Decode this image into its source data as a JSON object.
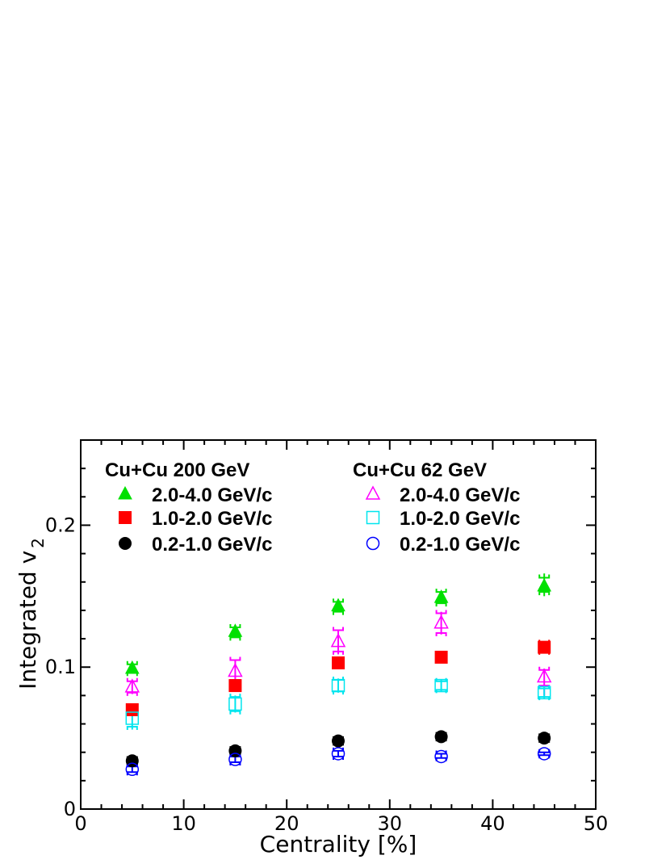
{
  "chart_data": {
    "type": "scatter",
    "xlabel": "Centrality [%]",
    "ylabel": "Integrated v",
    "ylabel_subscript": "2",
    "xlim": [
      0,
      50
    ],
    "ylim": [
      0,
      0.26
    ],
    "x_ticks": [
      {
        "value": 0,
        "label": "0"
      },
      {
        "value": 10,
        "label": "10"
      },
      {
        "value": 20,
        "label": "20"
      },
      {
        "value": 30,
        "label": "30"
      },
      {
        "value": 40,
        "label": "40"
      },
      {
        "value": 50,
        "label": "50"
      }
    ],
    "y_ticks": [
      {
        "value": 0,
        "label": "0"
      },
      {
        "value": 0.1,
        "label": "0.1"
      },
      {
        "value": 0.2,
        "label": "0.2"
      }
    ],
    "grid": false,
    "legend_groups": [
      {
        "title": "Cu+Cu 200 GeV",
        "placement": "top-left"
      },
      {
        "title": "Cu+Cu 62 GeV",
        "placement": "top-right"
      }
    ],
    "series": [
      {
        "name": "2.0-4.0 GeV/c",
        "group": 0,
        "marker": "triangle",
        "filled": true,
        "color": "#00e000",
        "x": [
          5,
          15,
          25,
          35,
          45
        ],
        "y": [
          0.099,
          0.125,
          0.143,
          0.149,
          0.157
        ],
        "sys_lo": [
          0.096,
          0.121,
          0.139,
          0.145,
          0.153
        ],
        "sys_hi": [
          0.102,
          0.128,
          0.146,
          0.153,
          0.163
        ],
        "stat_lo": [
          0.097,
          0.122,
          0.14,
          0.146,
          0.15
        ],
        "stat_hi": [
          0.101,
          0.128,
          0.146,
          0.152,
          0.166
        ]
      },
      {
        "name": "1.0-2.0 GeV/c",
        "group": 0,
        "marker": "square",
        "filled": true,
        "color": "#ff0000",
        "x": [
          5,
          15,
          25,
          35,
          45
        ],
        "y": [
          0.07,
          0.087,
          0.103,
          0.107,
          0.114
        ],
        "sys_lo": [
          0.068,
          0.085,
          0.101,
          0.105,
          0.111
        ],
        "sys_hi": [
          0.072,
          0.089,
          0.105,
          0.109,
          0.117
        ],
        "stat_lo": [
          0.068,
          0.085,
          0.101,
          0.105,
          0.111
        ],
        "stat_hi": [
          0.072,
          0.089,
          0.105,
          0.109,
          0.117
        ]
      },
      {
        "name": "0.2-1.0 GeV/c",
        "group": 0,
        "marker": "circle",
        "filled": true,
        "color": "#000000",
        "x": [
          5,
          15,
          25,
          35,
          45
        ],
        "y": [
          0.034,
          0.041,
          0.048,
          0.051,
          0.05
        ],
        "sys_lo": [
          0.033,
          0.04,
          0.047,
          0.05,
          0.049
        ],
        "sys_hi": [
          0.035,
          0.042,
          0.049,
          0.052,
          0.051
        ],
        "stat_lo": [
          0.033,
          0.04,
          0.047,
          0.05,
          0.049
        ],
        "stat_hi": [
          0.035,
          0.042,
          0.049,
          0.052,
          0.051
        ]
      },
      {
        "name": "2.0-4.0 GeV/c",
        "group": 1,
        "marker": "triangle",
        "filled": false,
        "color": "#ff00ff",
        "x": [
          5,
          15,
          25,
          35,
          45
        ],
        "y": [
          0.086,
          0.097,
          0.118,
          0.131,
          0.093
        ],
        "sys_lo": [
          0.082,
          0.091,
          0.111,
          0.124,
          0.087
        ],
        "sys_hi": [
          0.09,
          0.105,
          0.126,
          0.138,
          0.098
        ],
        "stat_lo": [
          0.081,
          0.09,
          0.109,
          0.123,
          0.08
        ],
        "stat_hi": [
          0.091,
          0.105,
          0.126,
          0.139,
          0.099
        ]
      },
      {
        "name": "1.0-2.0 GeV/c",
        "group": 1,
        "marker": "square",
        "filled": false,
        "color": "#00e5ee",
        "x": [
          5,
          15,
          25,
          35,
          45
        ],
        "y": [
          0.064,
          0.074,
          0.087,
          0.087,
          0.082
        ],
        "sys_lo": [
          0.058,
          0.069,
          0.083,
          0.084,
          0.079
        ],
        "sys_hi": [
          0.07,
          0.079,
          0.091,
          0.09,
          0.085
        ],
        "stat_lo": [
          0.056,
          0.068,
          0.082,
          0.083,
          0.078
        ],
        "stat_hi": [
          0.072,
          0.08,
          0.092,
          0.091,
          0.086
        ]
      },
      {
        "name": "0.2-1.0 GeV/c",
        "group": 1,
        "marker": "circle",
        "filled": false,
        "color": "#0000ff",
        "x": [
          5,
          15,
          25,
          35,
          45
        ],
        "y": [
          0.028,
          0.035,
          0.039,
          0.037,
          0.039
        ],
        "sys_lo": [
          0.026,
          0.033,
          0.037,
          0.036,
          0.038
        ],
        "sys_hi": [
          0.03,
          0.037,
          0.041,
          0.039,
          0.04
        ],
        "stat_lo": [
          0.026,
          0.033,
          0.037,
          0.036,
          0.038
        ],
        "stat_hi": [
          0.03,
          0.037,
          0.041,
          0.039,
          0.04
        ]
      }
    ]
  }
}
